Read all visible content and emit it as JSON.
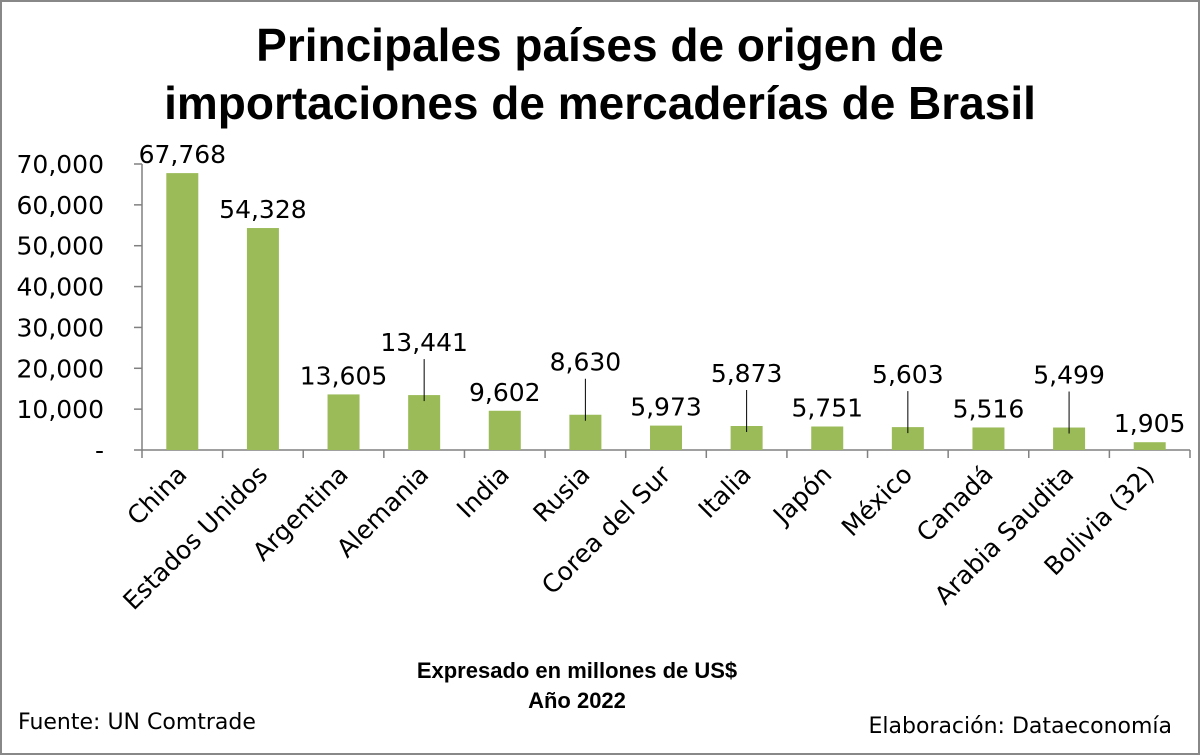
{
  "chart_data": {
    "type": "bar",
    "title": [
      "Principales países de origen de",
      "importaciones de mercaderías de Brasil"
    ],
    "categories": [
      "China",
      "Estados Unidos",
      "Argentina",
      "Alemania",
      "India",
      "Rusia",
      "Corea del Sur",
      "Italia",
      "Japón",
      "México",
      "Canadá",
      "Arabia Saudita",
      "Bolivia (32)"
    ],
    "values": [
      67768,
      54328,
      13605,
      13441,
      9602,
      8630,
      5973,
      5873,
      5751,
      5603,
      5516,
      5499,
      1905
    ],
    "value_labels": [
      "67,768",
      "54,328",
      "13,605",
      "13,441",
      "9,602",
      "8,630",
      "5,973",
      "5,873",
      "5,751",
      "5,603",
      "5,516",
      "5,499",
      "1,905"
    ],
    "ylim": [
      0,
      70000
    ],
    "yticks": [
      0,
      10000,
      20000,
      30000,
      40000,
      50000,
      60000,
      70000
    ],
    "ytick_labels": [
      "-",
      "10,000",
      "20,000",
      "30,000",
      "40,000",
      "50,000",
      "60,000",
      "70,000"
    ],
    "grid": false,
    "legend": "none",
    "bar_color": "#9BBB59",
    "caption": [
      "Expresado en millones de US$",
      "Año 2022"
    ]
  },
  "footer": {
    "source": "Fuente: UN Comtrade",
    "credit": "Elaboración: Dataeconomía"
  }
}
